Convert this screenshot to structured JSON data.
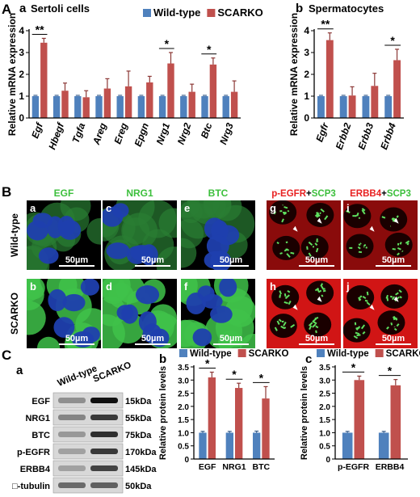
{
  "colors": {
    "wt": "#4f81bd",
    "ko": "#c0504d",
    "wt_dark": "#385d8a",
    "ko_dark": "#8c3836"
  },
  "labels": {
    "A": "A",
    "B": "B",
    "C": "C"
  },
  "legend": {
    "wt": "Wild-type",
    "ko": "SCARKO"
  },
  "panelA": {
    "a": {
      "letter": "a",
      "title": "Sertoli cells",
      "ylabel": "Relative mRNA expression",
      "ylim": [
        0,
        4
      ],
      "ticks": [
        "0",
        "1",
        "2",
        "3",
        "4"
      ],
      "categories": [
        "Egf",
        "Hbegf",
        "Tgfa",
        "Areg",
        "Ereg",
        "Epgn",
        "Nrg1",
        "Nrg2",
        "Btc",
        "Nrg3"
      ],
      "wt": [
        1,
        1,
        1,
        1,
        1,
        1,
        1,
        1,
        1,
        1
      ],
      "ko": [
        3.45,
        1.25,
        0.95,
        1.35,
        1.45,
        1.63,
        2.5,
        1.2,
        2.45,
        1.2
      ],
      "ko_err": [
        0.2,
        0.35,
        0.3,
        0.45,
        0.7,
        0.28,
        0.5,
        0.35,
        0.3,
        0.5
      ],
      "sig": [
        "**",
        "",
        "",
        "",
        "",
        "",
        "*",
        "",
        "*",
        ""
      ]
    },
    "b": {
      "letter": "b",
      "title": "Spermatocytes",
      "ylabel": "Relative mRNA expression",
      "ylim": [
        0,
        4
      ],
      "ticks": [
        "0",
        "1",
        "2",
        "3",
        "4"
      ],
      "categories": [
        "Egfr",
        "Erbb2",
        "Erbb3",
        "Erbb4"
      ],
      "wt": [
        1,
        1,
        1,
        1
      ],
      "ko": [
        3.57,
        1.03,
        1.47,
        2.65
      ],
      "ko_err": [
        0.33,
        0.4,
        0.58,
        0.5
      ],
      "sig": [
        "**",
        "",
        "",
        "*"
      ]
    }
  },
  "panelB": {
    "cols": [
      "EGF",
      "NRG1",
      "BTC"
    ],
    "stain_parts": [
      [
        "p-EGFR",
        "+",
        "SCP3"
      ],
      [
        "ERBB4",
        "+",
        "SCP3"
      ]
    ],
    "rows": [
      "Wild-type",
      "SCARKO"
    ],
    "letters": [
      [
        "a",
        "c",
        "e",
        "g",
        "i"
      ],
      [
        "b",
        "d",
        "f",
        "h",
        "j"
      ]
    ],
    "scale": "50µm"
  },
  "panelC": {
    "blot": {
      "letter": "a",
      "headers": [
        "Wild-type",
        "SCARKO"
      ],
      "proteins": [
        "EGF",
        "NRG1",
        "BTC",
        "p-EGFR",
        "ERBB4",
        "□-tubulin"
      ],
      "sizes": [
        "15kDa",
        "55kDa",
        "75kDa",
        "170kDa",
        "145kDa",
        "50kDa"
      ]
    },
    "b": {
      "letter": "b",
      "ylabel": "Relative protein levels",
      "ylim": [
        0,
        3.5
      ],
      "ticks": [
        "0",
        "0.5",
        "1.0",
        "1.5",
        "2.0",
        "2.5",
        "3.0",
        "3.5"
      ],
      "categories": [
        "EGF",
        "NRG1",
        "BTC"
      ],
      "wt": [
        1,
        1,
        1
      ],
      "wt_err": [
        0.05,
        0.05,
        0.06
      ],
      "ko": [
        3.1,
        2.7,
        2.3
      ],
      "ko_err": [
        0.2,
        0.18,
        0.45
      ],
      "sig": [
        "*",
        "*",
        "*"
      ]
    },
    "c": {
      "letter": "c",
      "ylabel": "Relative protein levels",
      "ylim": [
        0,
        3.5
      ],
      "ticks": [
        "0",
        "0.5",
        "1.0",
        "1.5",
        "2.0",
        "2.5",
        "3.0",
        "3.5"
      ],
      "categories": [
        "p-EGFR",
        "ERBB4"
      ],
      "wt": [
        1,
        1
      ],
      "wt_err": [
        0.05,
        0.05
      ],
      "ko": [
        3.0,
        2.8
      ],
      "ko_err": [
        0.15,
        0.22
      ],
      "sig": [
        "*",
        "*"
      ]
    }
  },
  "chart_data": [
    {
      "type": "bar",
      "title": "Sertoli cells",
      "ylabel": "Relative mRNA expression",
      "ylim": [
        0,
        4
      ],
      "categories": [
        "Egf",
        "Hbegf",
        "Tgfa",
        "Areg",
        "Ereg",
        "Epgn",
        "Nrg1",
        "Nrg2",
        "Btc",
        "Nrg3"
      ],
      "series": [
        {
          "name": "Wild-type",
          "values": [
            1,
            1,
            1,
            1,
            1,
            1,
            1,
            1,
            1,
            1
          ]
        },
        {
          "name": "SCARKO",
          "values": [
            3.45,
            1.25,
            0.95,
            1.35,
            1.45,
            1.63,
            2.5,
            1.2,
            2.45,
            1.2
          ]
        }
      ]
    },
    {
      "type": "bar",
      "title": "Spermatocytes",
      "ylabel": "Relative mRNA expression",
      "ylim": [
        0,
        4
      ],
      "categories": [
        "Egfr",
        "Erbb2",
        "Erbb3",
        "Erbb4"
      ],
      "series": [
        {
          "name": "Wild-type",
          "values": [
            1,
            1,
            1,
            1
          ]
        },
        {
          "name": "SCARKO",
          "values": [
            3.57,
            1.03,
            1.47,
            2.65
          ]
        }
      ]
    },
    {
      "type": "bar",
      "ylabel": "Relative protein levels",
      "ylim": [
        0,
        3.5
      ],
      "categories": [
        "EGF",
        "NRG1",
        "BTC"
      ],
      "series": [
        {
          "name": "Wild-type",
          "values": [
            1,
            1,
            1
          ]
        },
        {
          "name": "SCARKO",
          "values": [
            3.1,
            2.7,
            2.3
          ]
        }
      ]
    },
    {
      "type": "bar",
      "ylabel": "Relative protein levels",
      "ylim": [
        0,
        3.5
      ],
      "categories": [
        "p-EGFR",
        "ERBB4"
      ],
      "series": [
        {
          "name": "Wild-type",
          "values": [
            1,
            1
          ]
        },
        {
          "name": "SCARKO",
          "values": [
            3.0,
            2.8
          ]
        }
      ]
    }
  ]
}
